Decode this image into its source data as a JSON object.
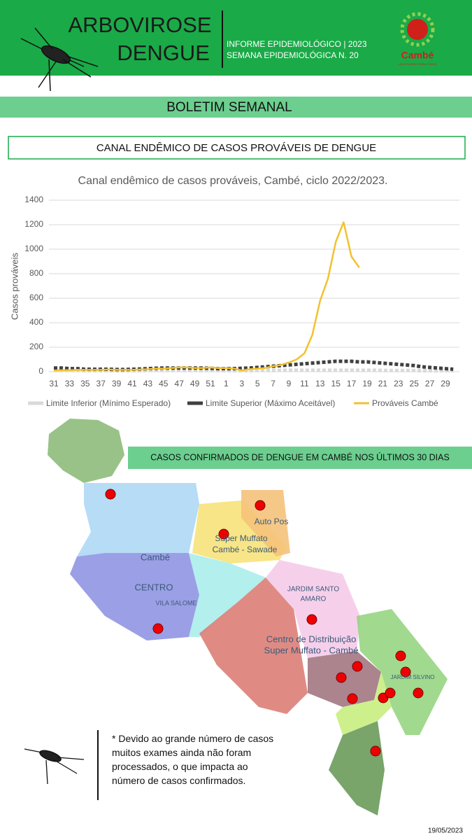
{
  "header": {
    "title_line1": "ARBOVIROSE",
    "title_line2": "DENGUE",
    "info_line1": "INFORME EPIDEMIOLÓGICO | 2023",
    "info_line2": "SEMANA EPIDEMIOLÓGICA  N. 20",
    "logo_text": "Cambé",
    "logo_tagline": "UM GOVERNO PARA TODOS"
  },
  "banner": "BOLETIM SEMANAL",
  "section_title": "CANAL ENDÊMICO DE CASOS PROVÁVEIS DE DENGUE",
  "chart_data": {
    "type": "line",
    "title": "Canal endêmico de casos prováveis, Cambé, ciclo 2022/2023.",
    "y_label": "Casos prováveis",
    "categories": [
      31,
      null,
      33,
      null,
      35,
      null,
      37,
      null,
      39,
      null,
      41,
      null,
      43,
      null,
      45,
      null,
      47,
      null,
      49,
      null,
      51,
      null,
      1,
      null,
      3,
      null,
      5,
      null,
      7,
      null,
      9,
      null,
      11,
      null,
      13,
      null,
      15,
      null,
      17,
      null,
      19,
      null,
      21,
      null,
      23,
      null,
      25,
      null,
      27,
      null,
      29,
      null
    ],
    "series": [
      {
        "name": "Limite Inferior (Mínimo Esperado)",
        "color": "#d9d9d9",
        "dash": true,
        "values": [
          10,
          10,
          10,
          10,
          8,
          8,
          8,
          8,
          8,
          8,
          8,
          8,
          10,
          10,
          10,
          10,
          10,
          10,
          10,
          10,
          10,
          8,
          8,
          8,
          8,
          8,
          10,
          10,
          10,
          12,
          12,
          12,
          12,
          12,
          12,
          12,
          12,
          12,
          12,
          12,
          12,
          12,
          10,
          10,
          10,
          10,
          10,
          8,
          8,
          8,
          8,
          8
        ]
      },
      {
        "name": "Limite Superior (Máximo Aceitável)",
        "color": "#404040",
        "dash": true,
        "values": [
          30,
          30,
          25,
          25,
          20,
          20,
          20,
          20,
          18,
          18,
          20,
          22,
          25,
          28,
          30,
          30,
          30,
          30,
          30,
          30,
          28,
          25,
          25,
          25,
          28,
          30,
          35,
          40,
          45,
          50,
          55,
          60,
          65,
          70,
          75,
          80,
          85,
          85,
          85,
          80,
          80,
          75,
          70,
          65,
          60,
          55,
          50,
          40,
          35,
          30,
          25,
          20
        ]
      },
      {
        "name": "Prováveis Cambé",
        "color": "#f2c12e",
        "dash": false,
        "values": [
          10,
          12,
          12,
          15,
          15,
          15,
          15,
          18,
          15,
          15,
          15,
          18,
          20,
          25,
          25,
          30,
          35,
          35,
          30,
          30,
          35,
          30,
          30,
          25,
          10,
          20,
          25,
          30,
          45,
          55,
          75,
          100,
          150,
          300,
          580,
          760,
          1060,
          1220,
          940,
          850,
          null,
          null,
          null,
          null,
          null,
          null,
          null,
          null,
          null,
          null,
          null,
          null
        ]
      }
    ],
    "ylim": [
      0,
      1400
    ],
    "yticks": [
      0,
      200,
      400,
      600,
      800,
      1000,
      1200,
      1400
    ],
    "grid": true,
    "legend": "bottom"
  },
  "map": {
    "title": "CASOS CONFIRMADOS DE DENGUE EM CAMBÉ NOS ÚLTIMOS 30 DIAS",
    "labels": [
      "Cambé",
      "CENTRO",
      "VILA SALOME",
      "Super Muffato",
      "Cambé - Sawade",
      "Auto Pos",
      "JARDIM SANTO",
      "AMARO",
      "Centro de Distribuição",
      "Super Muffato - Cambé",
      "JARDIM SILVINO"
    ]
  },
  "note": "* Devido ao grande número  de casos muitos exames ainda não foram processados, o que impacta ao número de casos confirmados.",
  "date": "19/05/2023"
}
